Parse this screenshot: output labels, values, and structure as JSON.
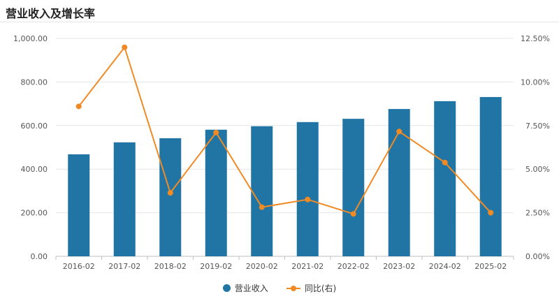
{
  "colors": {
    "bar": "#2175a5",
    "line": "#f08a24",
    "grid": "#e6e6e6",
    "axis": "#bfbfbf"
  },
  "chart_data": {
    "type": "bar",
    "title": "营业收入及增长率",
    "categories": [
      "2016-02",
      "2017-02",
      "2018-02",
      "2019-02",
      "2020-02",
      "2021-02",
      "2022-02",
      "2023-02",
      "2024-02",
      "2025-02"
    ],
    "series": [
      {
        "name": "营业收入",
        "type": "bar",
        "axis": "left",
        "values": [
          468,
          523,
          542,
          581,
          597,
          616,
          631,
          676,
          712,
          731
        ]
      },
      {
        "name": "同比(右)",
        "type": "line",
        "axis": "right",
        "unit": "%",
        "values": [
          8.6,
          11.99,
          3.64,
          7.1,
          2.82,
          3.26,
          2.43,
          7.16,
          5.38,
          2.5
        ]
      }
    ],
    "y_left": {
      "min": 0,
      "max": 1000,
      "ticks": [
        "0.00",
        "200.00",
        "400.00",
        "600.00",
        "800.00",
        "1,000.00"
      ]
    },
    "y_right": {
      "min": 0,
      "max": 12.5,
      "ticks": [
        "0.00%",
        "2.50%",
        "5.00%",
        "7.50%",
        "10.00%",
        "12.50%"
      ]
    },
    "grid": true,
    "legend_position": "bottom-center"
  }
}
